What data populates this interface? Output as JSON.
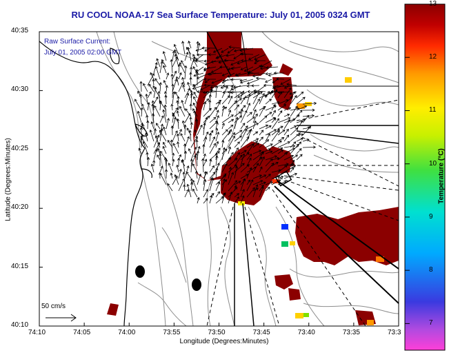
{
  "title": "RU COOL  NOAA-17  Sea Surface Temperature:  July 01, 2005 0324 GMT",
  "overlay_line1": "Raw Surface Current:",
  "overlay_line2": "July 01, 2005 02:00 GMT",
  "scale_label": "50 cm/s",
  "x_axis_label": "Longitude (Degrees:Minutes)",
  "y_axis_label": "Latitude (Degrees:Minutes)",
  "x_ticks": [
    "74:10",
    "74:05",
    "74:00",
    "73:55",
    "73:50",
    "73:45",
    "73:40",
    "73:35",
    "73:3"
  ],
  "y_ticks": [
    "40:35",
    "40:30",
    "40:25",
    "40:20",
    "40:15",
    "40:10"
  ],
  "colorbar": {
    "title": "Temperature (°C)",
    "ticks": [
      "13",
      "12",
      "11",
      "10",
      "9",
      "8",
      "7"
    ],
    "min": 6.5,
    "max": 13
  },
  "colors": {
    "land": "#ffffff",
    "sst_high": "#8b0000",
    "contour": "#8c8c8c",
    "title": "#1a1aa6"
  }
}
